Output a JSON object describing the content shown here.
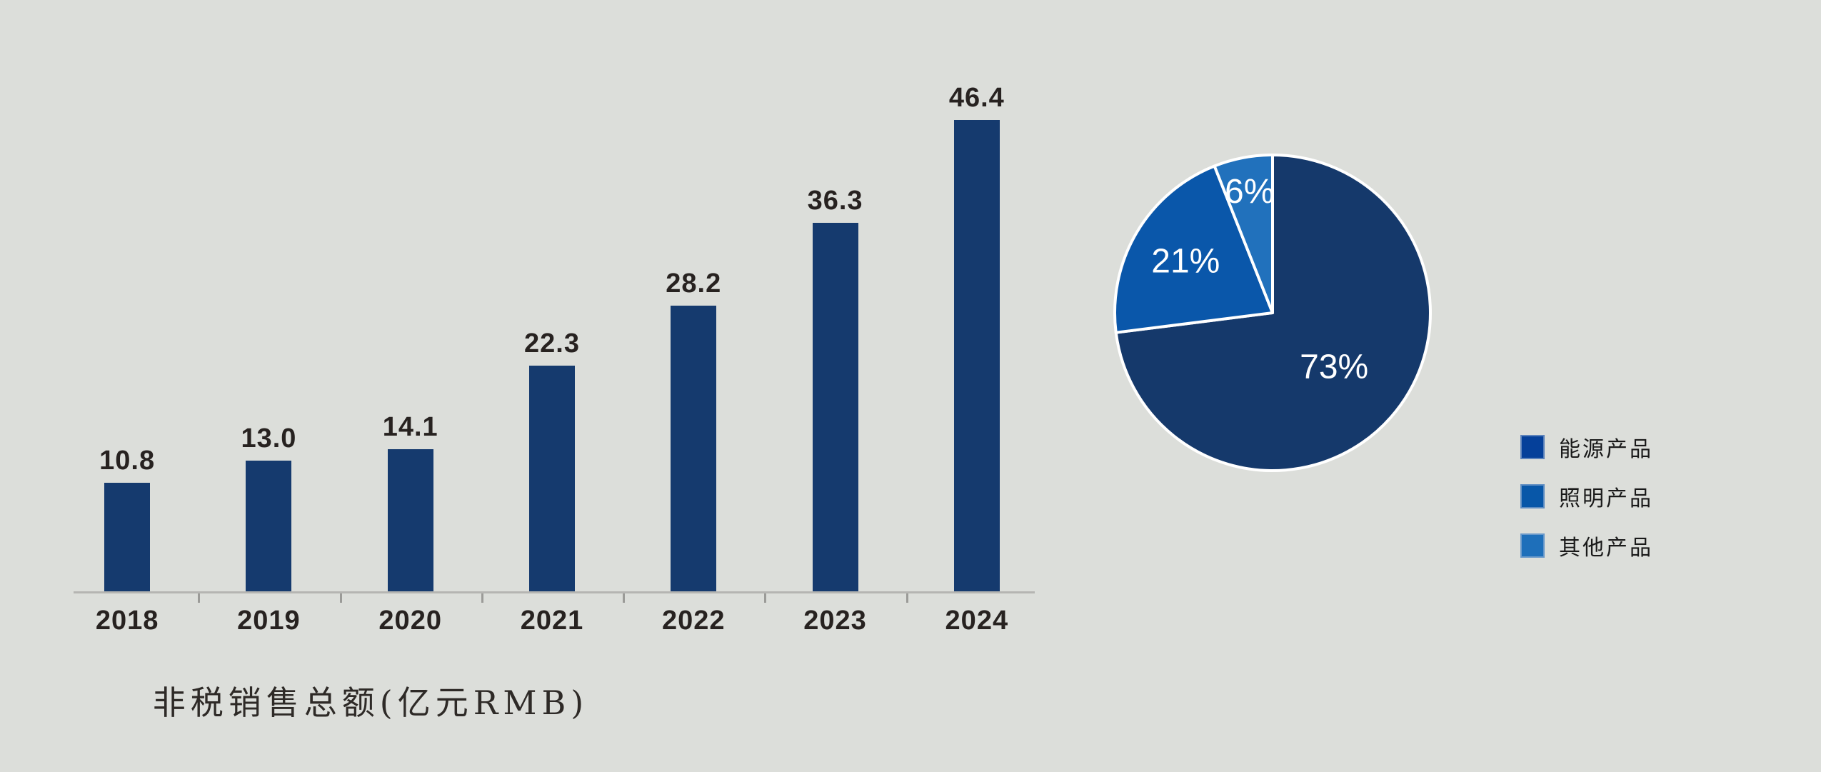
{
  "background_color": "#dcdeda",
  "chart_data": [
    {
      "type": "bar",
      "title": "非税销售总额(亿元RMB)",
      "categories": [
        "2018",
        "2019",
        "2020",
        "2021",
        "2022",
        "2023",
        "2024"
      ],
      "values": [
        10.8,
        13.0,
        14.1,
        22.3,
        28.2,
        36.3,
        46.4
      ],
      "data_labels": [
        "10.8",
        "13.0",
        "14.1",
        "22.3",
        "28.2",
        "36.3",
        "46.4"
      ],
      "xlabel": "",
      "ylabel": "",
      "ylim": [
        0,
        50
      ],
      "grid": false,
      "legend": false,
      "bar_color": "#153a6e",
      "axis_color": "#b5b5b2",
      "label_color": "#272220"
    },
    {
      "type": "pie",
      "labels": [
        "能源产品",
        "照明产品",
        "其他产品"
      ],
      "values": [
        73,
        21,
        6
      ],
      "data_labels": [
        "73%",
        "21%",
        "6%"
      ],
      "slice_colors": [
        "#15396b",
        "#0a57aa",
        "#2171bc"
      ],
      "legend_colors": [
        "#05409a",
        "#0857a8",
        "#1e6fba"
      ],
      "slice_border_color": "#ffffff",
      "value_label_color": "#ffffff",
      "start_angle_deg": 0,
      "direction": "clockwise",
      "legend_position": "right"
    }
  ]
}
